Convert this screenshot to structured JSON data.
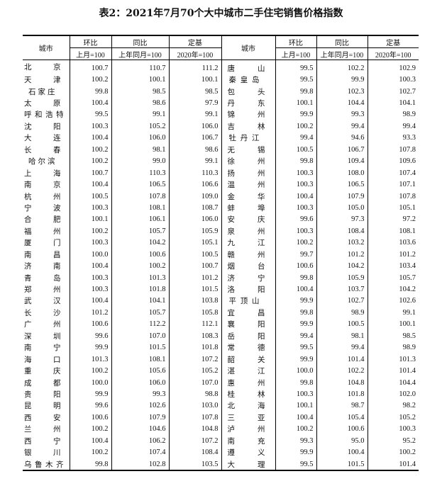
{
  "title": "表2：2021年7月70个大中城市二手住宅销售价格指数",
  "header": {
    "city": "城市",
    "mom": "环比",
    "yoy": "同比",
    "base": "定基",
    "mom_base": "上月=100",
    "yoy_base": "上年同月=100",
    "base_base": "2020年=100"
  },
  "left": [
    {
      "city": "北京",
      "mom": "100.7",
      "yoy": "110.7",
      "base": "111.2"
    },
    {
      "city": "天津",
      "mom": "100.2",
      "yoy": "100.1",
      "base": "100.1"
    },
    {
      "city": "石家庄",
      "mom": "99.8",
      "yoy": "98.5",
      "base": "98.5"
    },
    {
      "city": "太原",
      "mom": "100.4",
      "yoy": "98.6",
      "base": "97.9"
    },
    {
      "city": "呼和浩特",
      "mom": "99.5",
      "yoy": "99.1",
      "base": "99.1"
    },
    {
      "city": "沈阳",
      "mom": "100.3",
      "yoy": "105.2",
      "base": "106.0"
    },
    {
      "city": "大连",
      "mom": "100.4",
      "yoy": "106.0",
      "base": "106.7"
    },
    {
      "city": "长春",
      "mom": "100.2",
      "yoy": "98.1",
      "base": "98.6"
    },
    {
      "city": "哈尔滨",
      "mom": "100.2",
      "yoy": "99.0",
      "base": "99.1"
    },
    {
      "city": "上海",
      "mom": "100.7",
      "yoy": "110.3",
      "base": "110.3"
    },
    {
      "city": "南京",
      "mom": "100.4",
      "yoy": "106.5",
      "base": "106.6"
    },
    {
      "city": "杭州",
      "mom": "100.5",
      "yoy": "107.8",
      "base": "109.0"
    },
    {
      "city": "宁波",
      "mom": "100.3",
      "yoy": "108.1",
      "base": "108.7"
    },
    {
      "city": "合肥",
      "mom": "100.1",
      "yoy": "106.1",
      "base": "106.0"
    },
    {
      "city": "福州",
      "mom": "100.2",
      "yoy": "105.7",
      "base": "105.9"
    },
    {
      "city": "厦门",
      "mom": "100.3",
      "yoy": "104.2",
      "base": "105.1"
    },
    {
      "city": "南昌",
      "mom": "100.0",
      "yoy": "100.6",
      "base": "100.5"
    },
    {
      "city": "济南",
      "mom": "100.4",
      "yoy": "100.2",
      "base": "100.7"
    },
    {
      "city": "青岛",
      "mom": "100.3",
      "yoy": "101.3",
      "base": "101.2"
    },
    {
      "city": "郑州",
      "mom": "100.3",
      "yoy": "101.8",
      "base": "101.5"
    },
    {
      "city": "武汉",
      "mom": "100.4",
      "yoy": "104.1",
      "base": "103.8"
    },
    {
      "city": "长沙",
      "mom": "101.2",
      "yoy": "105.7",
      "base": "105.8"
    },
    {
      "city": "广州",
      "mom": "100.6",
      "yoy": "112.2",
      "base": "112.1"
    },
    {
      "city": "深圳",
      "mom": "99.6",
      "yoy": "107.0",
      "base": "108.3"
    },
    {
      "city": "南宁",
      "mom": "99.9",
      "yoy": "101.5",
      "base": "101.8"
    },
    {
      "city": "海口",
      "mom": "101.3",
      "yoy": "108.1",
      "base": "107.2"
    },
    {
      "city": "重庆",
      "mom": "100.2",
      "yoy": "105.6",
      "base": "105.2"
    },
    {
      "city": "成都",
      "mom": "100.0",
      "yoy": "106.0",
      "base": "107.0"
    },
    {
      "city": "贵阳",
      "mom": "99.9",
      "yoy": "99.3",
      "base": "98.8"
    },
    {
      "city": "昆明",
      "mom": "99.6",
      "yoy": "102.6",
      "base": "103.0"
    },
    {
      "city": "西安",
      "mom": "100.6",
      "yoy": "107.9",
      "base": "107.8"
    },
    {
      "city": "兰州",
      "mom": "100.2",
      "yoy": "104.6",
      "base": "104.8"
    },
    {
      "city": "西宁",
      "mom": "100.4",
      "yoy": "106.2",
      "base": "107.2"
    },
    {
      "city": "银川",
      "mom": "100.2",
      "yoy": "107.4",
      "base": "108.4"
    },
    {
      "city": "乌鲁木齐",
      "mom": "99.8",
      "yoy": "102.8",
      "base": "103.5"
    }
  ],
  "right": [
    {
      "city": "唐山",
      "mom": "99.5",
      "yoy": "102.2",
      "base": "102.9"
    },
    {
      "city": "秦皇岛",
      "mom": "99.5",
      "yoy": "99.9",
      "base": "100.3"
    },
    {
      "city": "包头",
      "mom": "99.8",
      "yoy": "102.3",
      "base": "102.7"
    },
    {
      "city": "丹东",
      "mom": "100.1",
      "yoy": "104.4",
      "base": "104.1"
    },
    {
      "city": "锦州",
      "mom": "99.9",
      "yoy": "99.3",
      "base": "98.9"
    },
    {
      "city": "吉林",
      "mom": "100.2",
      "yoy": "99.4",
      "base": "99.4"
    },
    {
      "city": "牡丹江",
      "mom": "99.4",
      "yoy": "94.6",
      "base": "93.3"
    },
    {
      "city": "无锡",
      "mom": "100.5",
      "yoy": "106.7",
      "base": "107.8"
    },
    {
      "city": "徐州",
      "mom": "99.8",
      "yoy": "109.4",
      "base": "109.6"
    },
    {
      "city": "扬州",
      "mom": "100.3",
      "yoy": "108.0",
      "base": "107.4"
    },
    {
      "city": "温州",
      "mom": "100.3",
      "yoy": "106.5",
      "base": "107.1"
    },
    {
      "city": "金华",
      "mom": "100.4",
      "yoy": "107.9",
      "base": "107.8"
    },
    {
      "city": "蚌埠",
      "mom": "100.3",
      "yoy": "105.0",
      "base": "105.1"
    },
    {
      "city": "安庆",
      "mom": "99.6",
      "yoy": "97.3",
      "base": "97.2"
    },
    {
      "city": "泉州",
      "mom": "100.3",
      "yoy": "108.4",
      "base": "108.1"
    },
    {
      "city": "九江",
      "mom": "100.2",
      "yoy": "103.2",
      "base": "103.6"
    },
    {
      "city": "赣州",
      "mom": "99.7",
      "yoy": "101.2",
      "base": "101.2"
    },
    {
      "city": "烟台",
      "mom": "100.6",
      "yoy": "104.2",
      "base": "103.4"
    },
    {
      "city": "济宁",
      "mom": "99.8",
      "yoy": "105.9",
      "base": "105.7"
    },
    {
      "city": "洛阳",
      "mom": "100.4",
      "yoy": "103.7",
      "base": "104.2"
    },
    {
      "city": "平顶山",
      "mom": "99.9",
      "yoy": "102.7",
      "base": "102.6"
    },
    {
      "city": "宜昌",
      "mom": "99.8",
      "yoy": "98.9",
      "base": "99.1"
    },
    {
      "city": "襄阳",
      "mom": "99.9",
      "yoy": "100.5",
      "base": "100.1"
    },
    {
      "city": "岳阳",
      "mom": "99.4",
      "yoy": "98.1",
      "base": "98.5"
    },
    {
      "city": "常德",
      "mom": "99.5",
      "yoy": "99.4",
      "base": "98.9"
    },
    {
      "city": "韶关",
      "mom": "99.9",
      "yoy": "101.4",
      "base": "101.3"
    },
    {
      "city": "湛江",
      "mom": "100.0",
      "yoy": "102.2",
      "base": "101.4"
    },
    {
      "city": "惠州",
      "mom": "99.8",
      "yoy": "104.8",
      "base": "104.4"
    },
    {
      "city": "桂林",
      "mom": "100.3",
      "yoy": "101.8",
      "base": "102.0"
    },
    {
      "city": "北海",
      "mom": "100.1",
      "yoy": "98.7",
      "base": "98.2"
    },
    {
      "city": "三亚",
      "mom": "100.4",
      "yoy": "105.4",
      "base": "105.2"
    },
    {
      "city": "泸州",
      "mom": "100.2",
      "yoy": "100.6",
      "base": "100.3"
    },
    {
      "city": "南充",
      "mom": "99.3",
      "yoy": "95.0",
      "base": "95.2"
    },
    {
      "city": "遵义",
      "mom": "99.9",
      "yoy": "100.4",
      "base": "100.2"
    },
    {
      "city": "大理",
      "mom": "99.5",
      "yoy": "101.5",
      "base": "101.4"
    }
  ]
}
